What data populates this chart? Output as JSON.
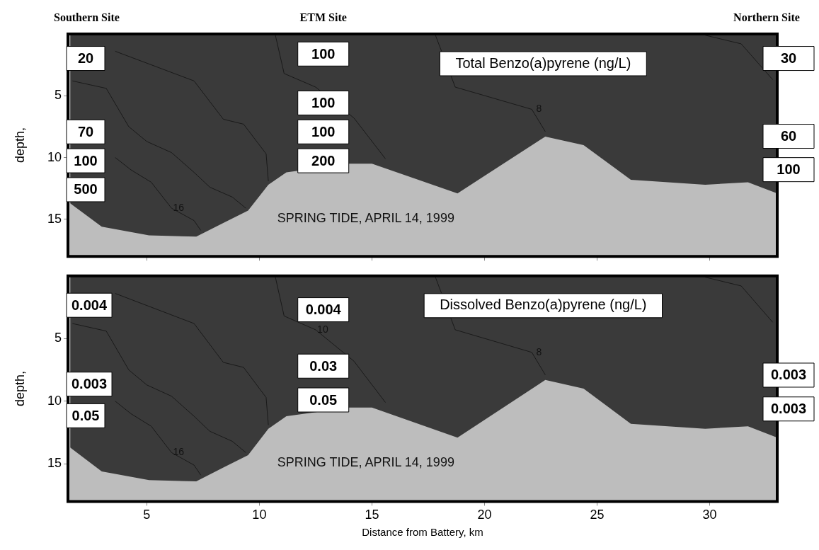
{
  "chart_data": [
    {
      "type": "area",
      "title": "Total Benzo(a)pyrene (ng/L)",
      "ylabel": "depth,",
      "xlim": [
        1.5,
        33
      ],
      "xticks": [
        5,
        10,
        15,
        20,
        25,
        30
      ],
      "ylim": [
        18,
        0
      ],
      "yticks": [
        5,
        10,
        15
      ],
      "tick_labels": "y",
      "grid": false,
      "series": [
        {
          "color": "#3a3a3a",
          "x": [
            1.6,
            3.0,
            5.1,
            7.2,
            8.4,
            9.5,
            10.4,
            11.2,
            14.0,
            15.0,
            18.8,
            22.7,
            24.4,
            26.5,
            29.8,
            31.7,
            33.0
          ],
          "values": [
            13.7,
            15.6,
            16.3,
            16.4,
            15.3,
            14.3,
            12.2,
            11.2,
            10.5,
            10.5,
            12.9,
            8.3,
            9.0,
            11.8,
            12.2,
            12.0,
            12.9
          ]
        },
        {
          "type": "line",
          "name": "8",
          "color": "#1a1a1a",
          "x": [
            17.8,
            18.7,
            22.1,
            22.7
          ],
          "values": [
            0,
            4.3,
            6.1,
            7.9
          ]
        },
        {
          "type": "line",
          "color": "#1a1a1a",
          "x": [
            10.7,
            11.1,
            12.5,
            14.2,
            15.6
          ],
          "values": [
            0,
            3.2,
            4.3,
            6.8,
            10.1
          ]
        },
        {
          "type": "line",
          "color": "#1a1a1a",
          "x": [
            3.6,
            7.1,
            8.4,
            9.3,
            10.3,
            10.4
          ],
          "values": [
            1.4,
            3.8,
            6.9,
            7.3,
            9.7,
            11.9
          ]
        },
        {
          "type": "line",
          "color": "#1a1a1a",
          "x": [
            1.7,
            3.2,
            4.2,
            5.0,
            6.1,
            7.1,
            7.8,
            8.8,
            9.4
          ],
          "values": [
            3.8,
            4.4,
            7.5,
            8.7,
            9.6,
            11.2,
            12.4,
            13.2,
            14.1
          ]
        },
        {
          "type": "line",
          "name": "16",
          "color": "#1a1a1a",
          "x": [
            3.6,
            4.3,
            5.2,
            6.1,
            7.1,
            7.4
          ],
          "values": [
            10.0,
            11.0,
            12.0,
            14.1,
            15.1,
            15.9
          ]
        },
        {
          "type": "line",
          "color": "#1a1a1a",
          "x": [
            29.8,
            31.4,
            32.8
          ],
          "values": [
            0.1,
            0.8,
            3.7
          ]
        }
      ],
      "annotations": [
        "Southern Site",
        "ETM Site",
        "Northern Site",
        "20",
        "70",
        "100",
        "500",
        "100",
        "100",
        "100",
        "200",
        "30",
        "60",
        "100",
        "SPRING TIDE, APRIL 14, 1999"
      ]
    },
    {
      "type": "area",
      "title": "Dissolved Benzo(a)pyrene (ng/L)",
      "xlabel": "Distance from Battery, km",
      "ylabel": "depth,",
      "xlim": [
        1.5,
        33
      ],
      "xticks": [
        5,
        10,
        15,
        20,
        25,
        30
      ],
      "ylim": [
        18,
        0
      ],
      "yticks": [
        5,
        10,
        15
      ],
      "grid": false,
      "series": [
        {
          "color": "#3a3a3a",
          "x": [
            1.6,
            3.0,
            5.1,
            7.2,
            8.4,
            9.5,
            10.4,
            11.2,
            14.0,
            15.0,
            18.8,
            22.7,
            24.4,
            26.5,
            29.8,
            31.7,
            33.0
          ],
          "values": [
            13.7,
            15.6,
            16.3,
            16.4,
            15.3,
            14.3,
            12.2,
            11.2,
            10.5,
            10.5,
            12.9,
            8.3,
            9.0,
            11.8,
            12.2,
            12.0,
            12.9
          ]
        },
        {
          "type": "line",
          "name": "8",
          "color": "#1a1a1a",
          "x": [
            17.8,
            18.7,
            22.1,
            22.7
          ],
          "values": [
            0,
            4.3,
            6.1,
            7.9
          ]
        },
        {
          "type": "line",
          "name": "10",
          "color": "#1a1a1a",
          "x": [
            10.7,
            11.1,
            12.5,
            14.2,
            15.6
          ],
          "values": [
            0,
            3.2,
            4.3,
            6.8,
            10.1
          ]
        },
        {
          "type": "line",
          "color": "#1a1a1a",
          "x": [
            3.6,
            7.1,
            8.4,
            9.3,
            10.3,
            10.4
          ],
          "values": [
            1.4,
            3.8,
            6.9,
            7.3,
            9.7,
            11.9
          ]
        },
        {
          "type": "line",
          "color": "#1a1a1a",
          "x": [
            1.7,
            3.2,
            4.2,
            5.0,
            6.1,
            7.1,
            7.8,
            8.8,
            9.4
          ],
          "values": [
            3.8,
            4.4,
            7.5,
            8.7,
            9.6,
            11.2,
            12.4,
            13.2,
            14.1
          ]
        },
        {
          "type": "line",
          "name": "16",
          "color": "#1a1a1a",
          "x": [
            3.6,
            4.3,
            5.2,
            6.1,
            7.1,
            7.4
          ],
          "values": [
            10.0,
            11.0,
            12.0,
            14.1,
            15.1,
            15.9
          ]
        },
        {
          "type": "line",
          "color": "#1a1a1a",
          "x": [
            29.8,
            31.4,
            32.8
          ],
          "values": [
            0.1,
            0.8,
            3.7
          ]
        }
      ],
      "annotations": [
        "0.004",
        "0.003",
        "0.05",
        "0.004",
        "0.03",
        "0.05",
        "0.003",
        "0.003",
        "SPRING TIDE, APRIL 14, 1999"
      ]
    }
  ]
}
